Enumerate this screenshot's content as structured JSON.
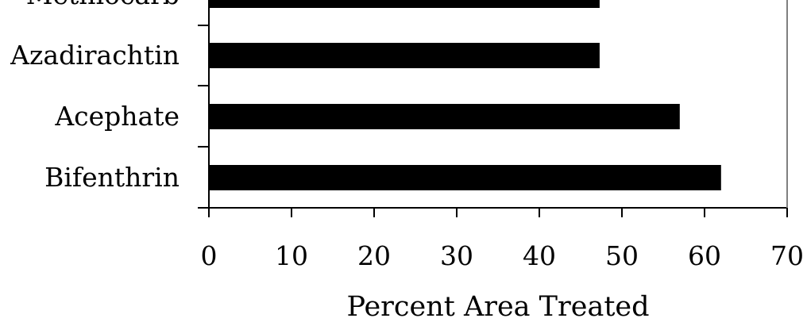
{
  "chart_data": {
    "type": "bar",
    "orientation": "horizontal",
    "categories": [
      "Methiocarb",
      "Azadirachtin",
      "Acephate",
      "Bifenthrin"
    ],
    "values": [
      47.3,
      47.3,
      57.0,
      62.0
    ],
    "xlabel": "Percent Area Treated",
    "ylabel": "",
    "xlim": [
      0,
      70
    ],
    "xticks": [
      0,
      10,
      20,
      30,
      40,
      50,
      60,
      70
    ],
    "grid": false,
    "legend": "none",
    "bar_color": "#000000"
  }
}
